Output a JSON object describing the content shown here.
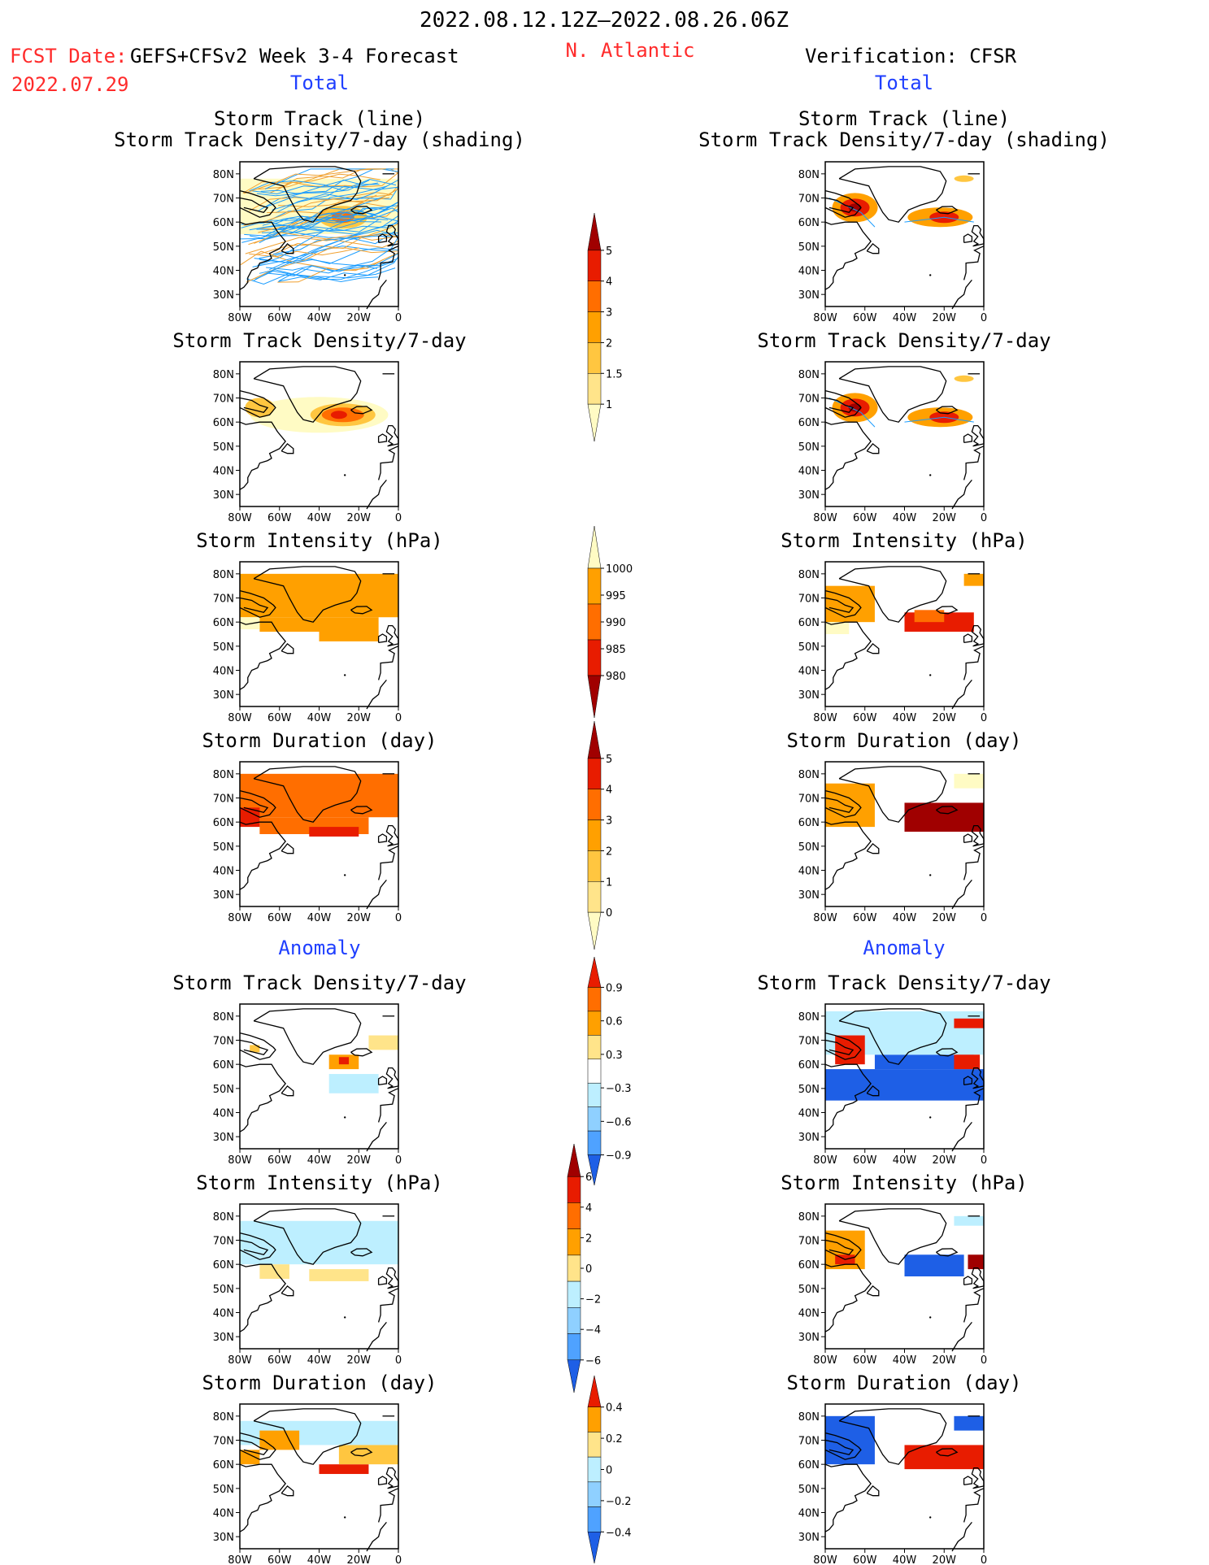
{
  "header": {
    "date_range": "2022.08.12.12Z–2022.08.26.06Z",
    "region": "N. Atlantic",
    "fcst_label": "FCST Date:",
    "fcst_model": "GEFS+CFSv2 Week 3-4 Forecast",
    "fcst_date": "2022.07.29",
    "verification": "Verification: CFSR",
    "left_total": "Total",
    "right_total": "Total",
    "left_anomaly": "Anomaly",
    "right_anomaly": "Anomaly"
  },
  "colors": {
    "text_red": "#ff2b2b",
    "text_blue": "#1f3fff",
    "warm": [
      "#fffbc4",
      "#ffe48a",
      "#ffc640",
      "#ffa000",
      "#ff6e00",
      "#e81c00",
      "#a00000"
    ],
    "cool": [
      "#bdefff",
      "#8fd0ff",
      "#4fa2ff",
      "#1e5fe6",
      "#1540c0"
    ],
    "track_forecast": "#1a9cff",
    "track_forecast_alt": "#f0a030"
  },
  "panels": {
    "track_title_line1": "Storm Track (line)",
    "track_title_line2": "Storm Track Density/7-day (shading)",
    "density_title": "Storm Track Density/7-day",
    "intensity_title": "Storm Intensity (hPa)",
    "duration_title": "Storm Duration (day)",
    "lat_labels": [
      "80N",
      "70N",
      "60N",
      "50N",
      "40N",
      "30N"
    ],
    "lon_labels": [
      "80W",
      "60W",
      "40W",
      "20W",
      "0"
    ]
  },
  "colorbars": {
    "density": [
      "5",
      "4",
      "3",
      "2",
      "1.5",
      "1"
    ],
    "intensity": [
      "1000",
      "995",
      "990",
      "985",
      "980"
    ],
    "duration": [
      "5",
      "4",
      "3",
      "2",
      "1",
      "0"
    ],
    "density_anom": [
      "0.9",
      "0.6",
      "0.3",
      "−0.3",
      "−0.6",
      "−0.9"
    ],
    "intensity_anom": [
      "6",
      "4",
      "2",
      "0",
      "−2",
      "−4",
      "−6"
    ],
    "duration_anom": [
      "0.4",
      "0.2",
      "0",
      "−0.2",
      "−0.4"
    ]
  }
}
